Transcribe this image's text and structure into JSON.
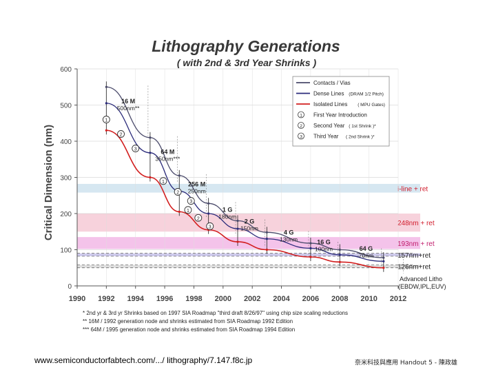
{
  "chart_data": {
    "type": "line",
    "title": "Lithography Generations",
    "subtitle": "( with 2nd & 3rd Year Shrinks )",
    "xlabel": "",
    "ylabel": "Critical Dimension (nm)",
    "xlim": [
      1990,
      2012
    ],
    "ylim": [
      0,
      600
    ],
    "x_ticks": [
      "1990",
      "1992",
      "1994",
      "1996",
      "1998",
      "2000",
      "2002",
      "2004",
      "2006",
      "2008",
      "2010",
      "2012"
    ],
    "y_ticks": [
      "0",
      "100",
      "200",
      "300",
      "400",
      "500",
      "600"
    ],
    "series": [
      {
        "name": "Contacts / Vias",
        "color": "#4a4a6a",
        "x": [
          1992,
          1995,
          1997,
          1999,
          2001,
          2003,
          2006,
          2008,
          2011
        ],
        "y": [
          550,
          410,
          305,
          228,
          180,
          148,
          118,
          100,
          78
        ]
      },
      {
        "name": "Dense Lines",
        "name_note": "(DRAM 1/2 Pitch)",
        "color": "#2a2a7a",
        "x": [
          1992,
          1995,
          1997,
          1999,
          2001,
          2003,
          2006,
          2008,
          2011
        ],
        "y": [
          505,
          368,
          262,
          200,
          158,
          130,
          104,
          86,
          68
        ]
      },
      {
        "name": "Isolated Lines",
        "name_note": "( MPU Gates)",
        "color": "#d21e1e",
        "x": [
          1992,
          1995,
          1997,
          1999,
          2001,
          2003,
          2006,
          2008,
          2011
        ],
        "y": [
          430,
          300,
          205,
          155,
          122,
          100,
          80,
          66,
          50
        ]
      }
    ],
    "legend": {
      "placement": "top-right",
      "items": [
        {
          "label": "Contacts / Vias",
          "note": ""
        },
        {
          "label": "Dense Lines",
          "note": "(DRAM 1/2 Pitch)"
        },
        {
          "label": "Isolated Lines",
          "note": "( MPU Gates)"
        },
        {
          "marker": "1",
          "label": "First Year Introduction",
          "note": ""
        },
        {
          "marker": "2",
          "label": "Second Year",
          "note": "( 1st Shrink )*"
        },
        {
          "marker": "3",
          "label": "Third Year",
          "note": "( 2nd Shrink )*"
        }
      ]
    },
    "generation_labels": [
      {
        "name": "16 M",
        "size": "500nm**",
        "x": 1993.5,
        "y": 505
      },
      {
        "name": "64 M",
        "size": "350nm***",
        "x": 1996.2,
        "y": 365
      },
      {
        "name": "256 M",
        "size": "250nm",
        "x": 1998.2,
        "y": 275
      },
      {
        "name": "1 G",
        "size": "180nm",
        "x": 2000.3,
        "y": 205
      },
      {
        "name": "2 G",
        "size": "150nm",
        "x": 2001.8,
        "y": 172
      },
      {
        "name": "4 G",
        "size": "130nm",
        "x": 2004.5,
        "y": 142
      },
      {
        "name": "16 G",
        "size": "100nm",
        "x": 2006.9,
        "y": 115
      },
      {
        "name": "64 G",
        "size": "70nm",
        "x": 2009.8,
        "y": 97
      }
    ],
    "year_markers": [
      {
        "label": "1",
        "x": 1992,
        "y": 460
      },
      {
        "label": "2",
        "x": 1993,
        "y": 420
      },
      {
        "label": "3",
        "x": 1994,
        "y": 380
      },
      {
        "label": "1",
        "x": 1995.9,
        "y": 290
      },
      {
        "label": "2",
        "x": 1996.9,
        "y": 260
      },
      {
        "label": "3",
        "x": 1997.8,
        "y": 235
      },
      {
        "label": "1",
        "x": 1997.6,
        "y": 210
      },
      {
        "label": "2",
        "x": 1998.3,
        "y": 188
      },
      {
        "label": "3",
        "x": 1999.1,
        "y": 165
      }
    ],
    "litho_bands": [
      {
        "label": "i-line + ret",
        "y_min": 258,
        "y_max": 282,
        "color": "#cfe3ee",
        "text_color": "#d11a2a"
      },
      {
        "label": "248nm + ret",
        "y_min": 150,
        "y_max": 200,
        "color": "#f6cad6",
        "text_color": "#d11a2a"
      },
      {
        "label": "193nm + ret",
        "y_min": 102,
        "y_max": 135,
        "color": "#f2b8e6",
        "text_color": "#c01a6a"
      },
      {
        "label": "157nm+ret",
        "y_min": 82,
        "y_max": 90,
        "color": "#c7c2ea",
        "text_color": "#222222"
      },
      {
        "label": "126nm+ret",
        "y_min": 50,
        "y_max": 58,
        "color": "#d8d8d8",
        "text_color": "#222222"
      }
    ],
    "advanced_litho": {
      "line1": "Advanced Litho",
      "line2": "(EBDW,IPL,EUV)"
    },
    "footnotes": [
      "*   2nd yr & 3rd yr Shrinks based on 1997 SIA Roadmap \"third draft 8/26/97\" using chip size scaling reductions",
      "**  16M / 1992 generation node and shrinks estimated from SIA Roadmap 1992 Edition",
      "*** 64M / 1995 generation node and shrinks estimated from SIA Roadmap 1994 Edition"
    ]
  },
  "footer": {
    "source": "www.semiconductorfabtech.com/.../ lithography/7.147.f8c.jp",
    "course": "奈米科技與應用  Handout 5 - 陳政雄"
  }
}
